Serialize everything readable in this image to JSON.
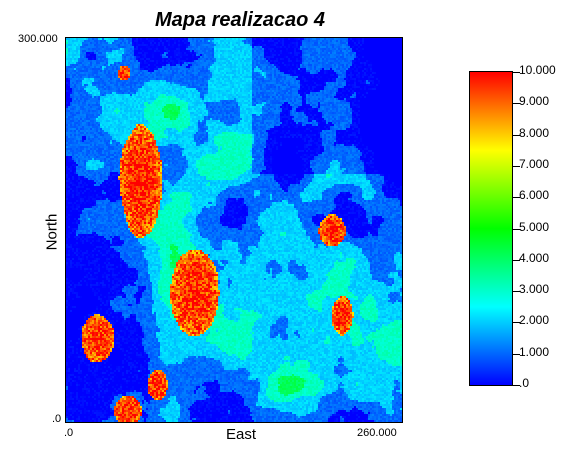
{
  "chart_data": {
    "type": "heatmap",
    "title": "Mapa realizacao 4",
    "xlabel": "East",
    "ylabel": "North",
    "xlim": [
      0,
      260
    ],
    "ylim": [
      0,
      300
    ],
    "x_tick_labels": [
      ".0",
      "260.000"
    ],
    "y_tick_labels": [
      ".0",
      "300.000"
    ],
    "colorbar": {
      "range": [
        0,
        10
      ],
      "tick_labels": [
        ".0",
        "1.000",
        "2.000",
        "3.000",
        "4.000",
        "5.000",
        "6.000",
        "7.000",
        "8.000",
        "9.000",
        "10.000"
      ],
      "colors": [
        "#0000ff",
        "#0080ff",
        "#00ffff",
        "#00ff80",
        "#00ff00",
        "#80ff00",
        "#ffff00",
        "#ff8000",
        "#ff0000"
      ]
    },
    "grid": false
  }
}
